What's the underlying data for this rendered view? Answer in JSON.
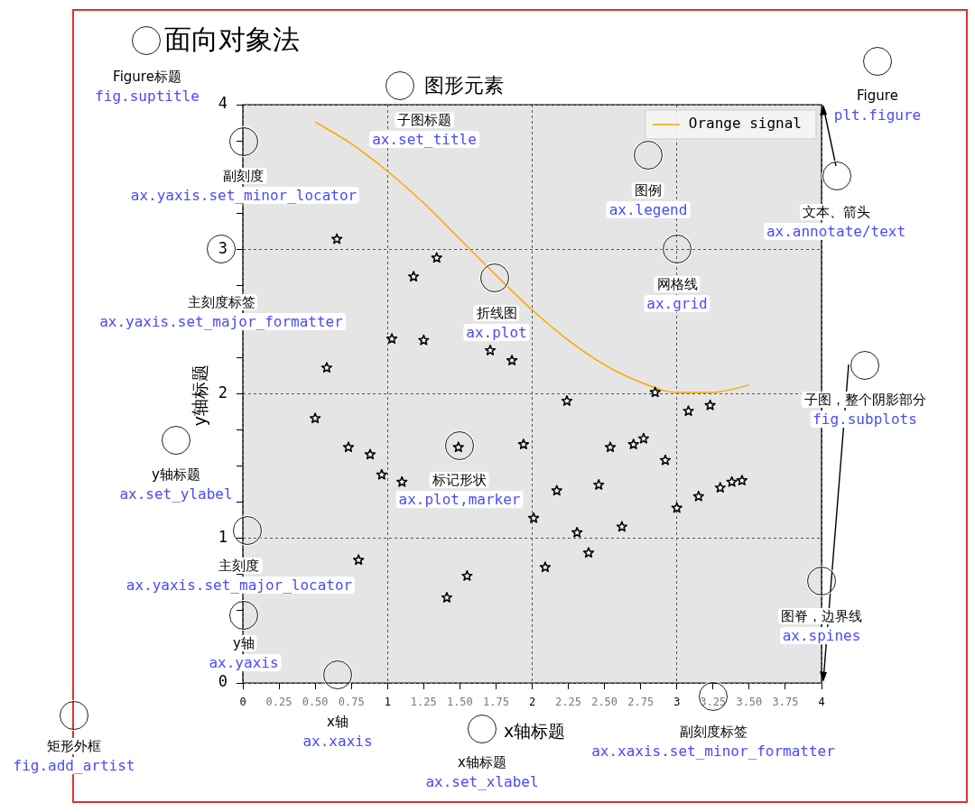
{
  "chart_data": {
    "type": "scatter",
    "title": "面向对象法",
    "subtitle": "图形元素",
    "xlabel": "x轴标题",
    "ylabel": "y轴标题",
    "xlim": [
      0,
      4
    ],
    "ylim": [
      0,
      4
    ],
    "xticks": [
      0,
      {
        "value": 0.25,
        "label": "0.25"
      },
      {
        "value": 0.5,
        "label": "0.50"
      },
      {
        "value": 0.75,
        "label": "0.75"
      },
      1,
      {
        "value": 1.25,
        "label": "1.25"
      },
      {
        "value": 1.5,
        "label": "1.50"
      },
      {
        "value": 1.75,
        "label": "1.75"
      },
      2,
      {
        "value": 2.25,
        "label": "2.25"
      },
      {
        "value": 2.5,
        "label": "2.50"
      },
      {
        "value": 2.75,
        "label": "2.75"
      },
      3,
      {
        "value": 3.25,
        "label": "3.25"
      },
      {
        "value": 3.5,
        "label": "3.50"
      },
      {
        "value": 3.75,
        "label": "3.75"
      },
      4
    ],
    "yticks": [
      0,
      {
        "value": 0.25,
        "label": null
      },
      {
        "value": 0.5,
        "label": null
      },
      {
        "value": 0.75,
        "label": null
      },
      1,
      {
        "value": 1.25,
        "label": null
      },
      {
        "value": 1.5,
        "label": null
      },
      {
        "value": 1.75,
        "label": null
      },
      2,
      {
        "value": 2.25,
        "label": null
      },
      {
        "value": 2.5,
        "label": null
      },
      {
        "value": 2.75,
        "label": null
      },
      3,
      {
        "value": 3.25,
        "label": null
      },
      {
        "value": 3.5,
        "label": null
      },
      {
        "value": 3.75,
        "label": null
      },
      4
    ],
    "grid": true,
    "legend": "top right",
    "series": [
      {
        "type": "scatter",
        "marker": "star",
        "color": "#000000",
        "x": [
          0.65,
          0.58,
          0.5,
          0.73,
          0.88,
          0.96,
          0.8,
          1.03,
          1.18,
          1.25,
          1.34,
          1.1,
          1.41,
          1.49,
          1.55,
          1.71,
          1.86,
          1.94,
          2.01,
          2.09,
          2.17,
          2.24,
          2.31,
          2.39,
          2.46,
          2.54,
          2.62,
          2.7,
          2.77,
          2.85,
          2.92,
          3.0,
          3.08,
          3.15,
          3.23,
          3.3,
          3.38,
          3.45
        ],
        "values": [
          3.07,
          2.18,
          1.83,
          1.63,
          1.58,
          1.44,
          0.85,
          2.38,
          2.81,
          2.37,
          2.94,
          1.39,
          0.59,
          1.63,
          0.74,
          2.3,
          2.23,
          1.65,
          1.14,
          0.8,
          1.33,
          1.95,
          1.04,
          0.9,
          1.37,
          1.63,
          1.08,
          1.65,
          1.69,
          2.01,
          1.54,
          1.21,
          1.88,
          1.29,
          1.92,
          1.35,
          1.39,
          1.4
        ]
      },
      {
        "type": "line",
        "name": "Orange signal",
        "color": "#ffa500",
        "x": [
          0.5,
          0.75,
          1.0,
          1.25,
          1.5,
          1.75,
          2.0,
          2.25,
          2.5,
          2.75,
          3.0,
          3.25,
          3.5
        ],
        "values": [
          3.88,
          3.73,
          3.54,
          3.32,
          3.07,
          2.82,
          2.58,
          2.37,
          2.2,
          2.08,
          2.01,
          2.01,
          2.06
        ]
      }
    ],
    "annotations": [
      "Figure标题\nfig.suptitle",
      "子图标题\nax.set_title",
      "副刻度\nax.yaxis.set_minor_locator",
      "图例\nax.legend",
      "文本、箭头\nax.annotate/text",
      "网格线\nax.grid",
      "主刻度标签\nax.yaxis.set_major_formatter",
      "折线图\nax.plot",
      "子图，整个阴影部分\nfig.subplots",
      "Figure\nplt.figure",
      "标记形状\nax.plot,marker",
      "y轴标题\nax.set_ylabel",
      "主刻度\nax.yaxis.set_major_locator",
      "图脊，边界线\nax.spines",
      "y轴\nax.yaxis",
      "x轴\nax.xaxis",
      "副刻度标签\nax.xaxis.set_minor_formatter",
      "x轴标题\nax.set_xlabel",
      "矩形外框\nfig.add_artist"
    ]
  }
}
